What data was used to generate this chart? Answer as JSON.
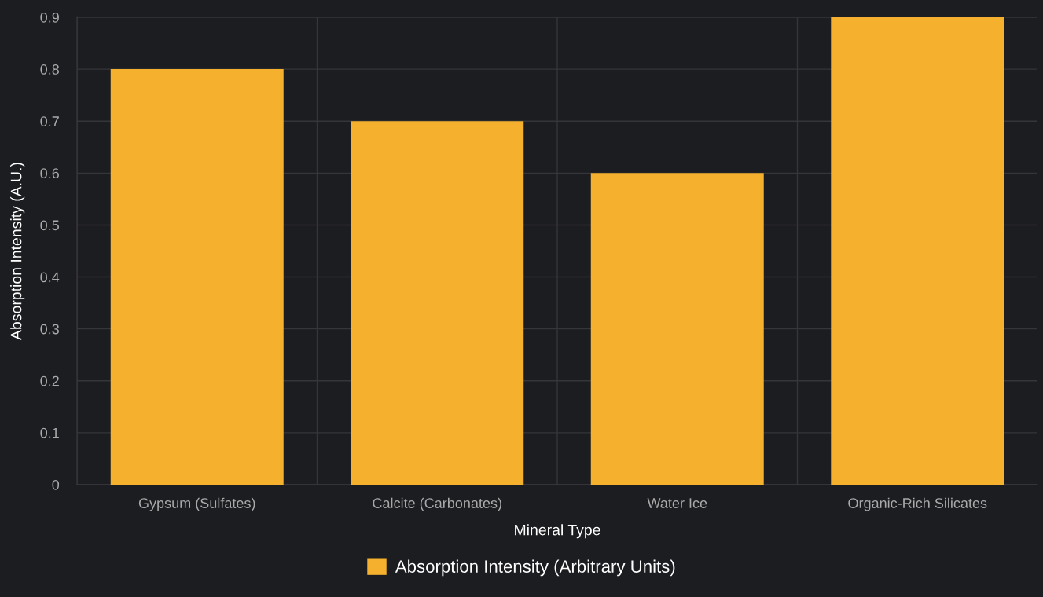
{
  "chart_data": {
    "type": "bar",
    "xlabel": "Mineral Type",
    "ylabel": "Absorption Intensity (A.U.)",
    "categories": [
      "Gypsum (Sulfates)",
      "Calcite (Carbonates)",
      "Water Ice",
      "Organic-Rich Silicates"
    ],
    "series": [
      {
        "name": "Absorption Intensity (Arbitrary Units)",
        "color": "#f5b12d",
        "values": [
          0.8,
          0.7,
          0.6,
          0.9
        ]
      }
    ],
    "ylim": [
      0,
      0.9
    ],
    "yticks": [
      0,
      0.1,
      0.2,
      0.3,
      0.4,
      0.5,
      0.6,
      0.7,
      0.8,
      0.9
    ],
    "grid": true,
    "legend": "bottom"
  }
}
